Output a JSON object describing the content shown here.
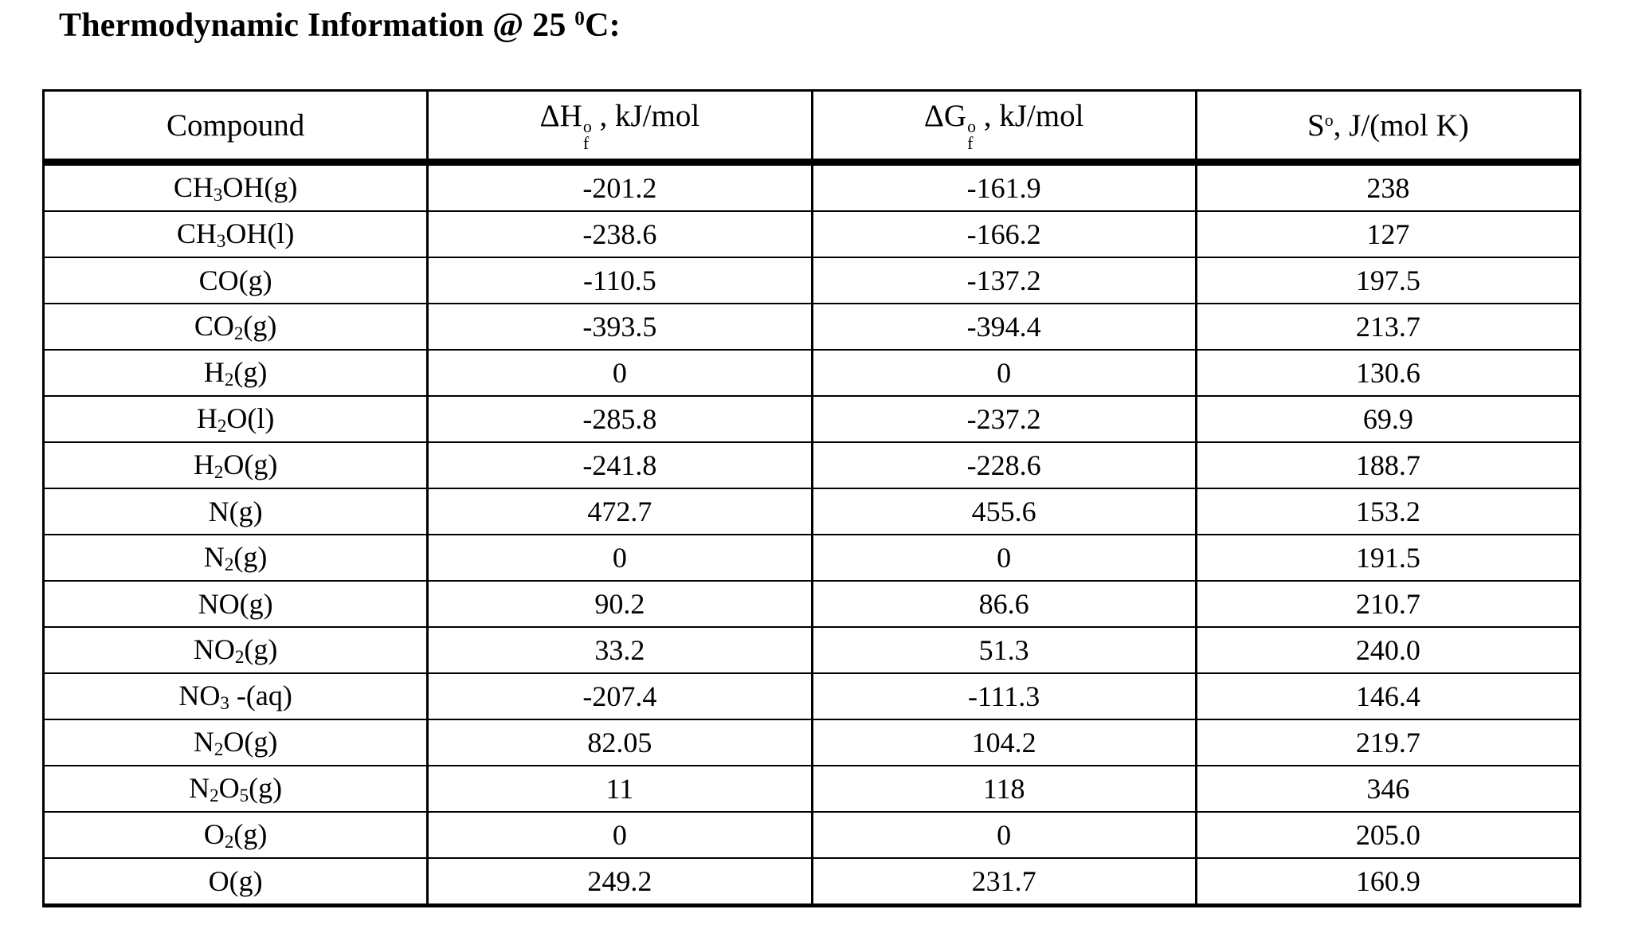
{
  "title": {
    "text": "Thermodynamic Information @ 25 ",
    "sup": "0",
    "rest": "C:"
  },
  "table": {
    "columns": [
      {
        "label": "Compound"
      },
      {
        "base": "ΔH",
        "sup": "o",
        "sub": "f",
        "rest": " , kJ/mol"
      },
      {
        "base": "ΔG",
        "sup": "o",
        "sub": "f",
        "rest": " , kJ/mol"
      },
      {
        "base": "S",
        "sup": "o",
        "rest": ", J/(mol K)"
      }
    ],
    "rows": [
      {
        "compound": "CH~3~OH(g)",
        "dHf": "-201.2",
        "dGf": "-161.9",
        "S": "238"
      },
      {
        "compound": "CH~3~OH(l)",
        "dHf": "-238.6",
        "dGf": "-166.2",
        "S": "127"
      },
      {
        "compound": "CO(g)",
        "dHf": "-110.5",
        "dGf": "-137.2",
        "S": "197.5"
      },
      {
        "compound": "CO~2~(g)",
        "dHf": "-393.5",
        "dGf": "-394.4",
        "S": "213.7"
      },
      {
        "compound": "H~2~(g)",
        "dHf": "0",
        "dGf": "0",
        "S": "130.6"
      },
      {
        "compound": "H~2~O(l)",
        "dHf": "-285.8",
        "dGf": "-237.2",
        "S": "69.9"
      },
      {
        "compound": "H~2~O(g)",
        "dHf": "-241.8",
        "dGf": "-228.6",
        "S": "188.7"
      },
      {
        "compound": "N(g)",
        "dHf": "472.7",
        "dGf": "455.6",
        "S": "153.2"
      },
      {
        "compound": "N~2~(g)",
        "dHf": "0",
        "dGf": "0",
        "S": "191.5"
      },
      {
        "compound": "NO(g)",
        "dHf": "90.2",
        "dGf": "86.6",
        "S": "210.7"
      },
      {
        "compound": "NO~2~(g)",
        "dHf": "33.2",
        "dGf": "51.3",
        "S": "240.0"
      },
      {
        "compound": "NO~3~ -(aq)",
        "dHf": "-207.4",
        "dGf": "-111.3",
        "S": "146.4"
      },
      {
        "compound": "N~2~O(g)",
        "dHf": "82.05",
        "dGf": "104.2",
        "S": "219.7"
      },
      {
        "compound": "N~2~O~5~(g)",
        "dHf": "11",
        "dGf": "118",
        "S": "346"
      },
      {
        "compound": "O~2~(g)",
        "dHf": "0",
        "dGf": "0",
        "S": "205.0"
      },
      {
        "compound": "O(g)",
        "dHf": "249.2",
        "dGf": "231.7",
        "S": "160.9"
      }
    ]
  }
}
